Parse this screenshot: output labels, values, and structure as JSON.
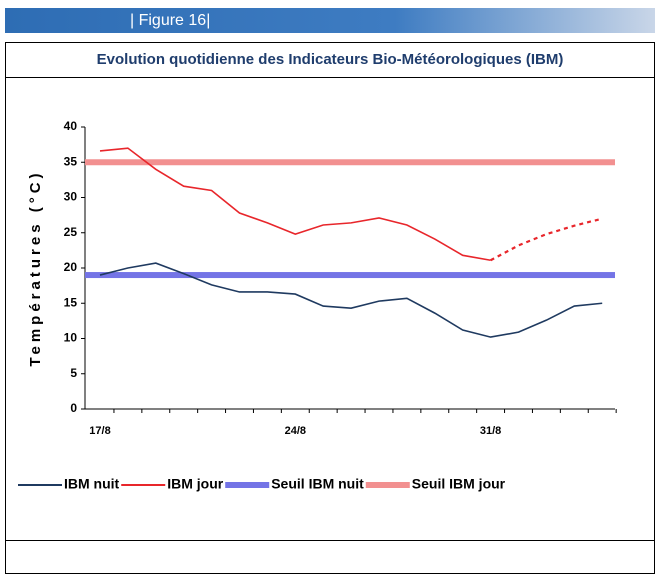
{
  "header": {
    "figure": "| Figure 16|"
  },
  "chart_data": {
    "type": "line",
    "title": "Evolution quotidienne des Indicateurs Bio-Météorologiques (IBM)",
    "y_label": "Températures (°C)",
    "categories": [
      "17/8",
      null,
      null,
      null,
      null,
      null,
      null,
      "24/8",
      null,
      null,
      null,
      null,
      null,
      null,
      "31/8",
      null,
      null,
      null,
      null
    ],
    "ylim": [
      0,
      40
    ],
    "yticks": [
      0,
      5,
      10,
      15,
      20,
      25,
      30,
      35,
      40
    ],
    "series": [
      {
        "name": "IBM nuit",
        "color": "#1f3a60",
        "values": [
          19,
          20,
          20.7,
          19.2,
          17.6,
          16.6,
          16.6,
          16.3,
          14.6,
          14.3,
          15.3,
          15.7,
          13.6,
          11.2,
          10.2,
          10.9,
          12.6,
          14.6,
          15
        ]
      },
      {
        "name": "IBM jour",
        "color": "#e8262b",
        "values": [
          36.6,
          37,
          34,
          31.6,
          31,
          27.8,
          26.4,
          24.8,
          26.1,
          26.4,
          27.1,
          26.1,
          24.1,
          21.8,
          21.1,
          null,
          null,
          null,
          null
        ],
        "dashed_values": [
          null,
          null,
          null,
          null,
          null,
          null,
          null,
          null,
          null,
          null,
          null,
          null,
          null,
          null,
          21.1,
          23.2,
          24.8,
          26,
          27
        ]
      }
    ],
    "thresholds": [
      {
        "name": "Seuil IBM nuit",
        "color": "#7474e6",
        "value": 19
      },
      {
        "name": "Seuil IBM jour",
        "color": "#f29090",
        "value": 35
      }
    ]
  }
}
